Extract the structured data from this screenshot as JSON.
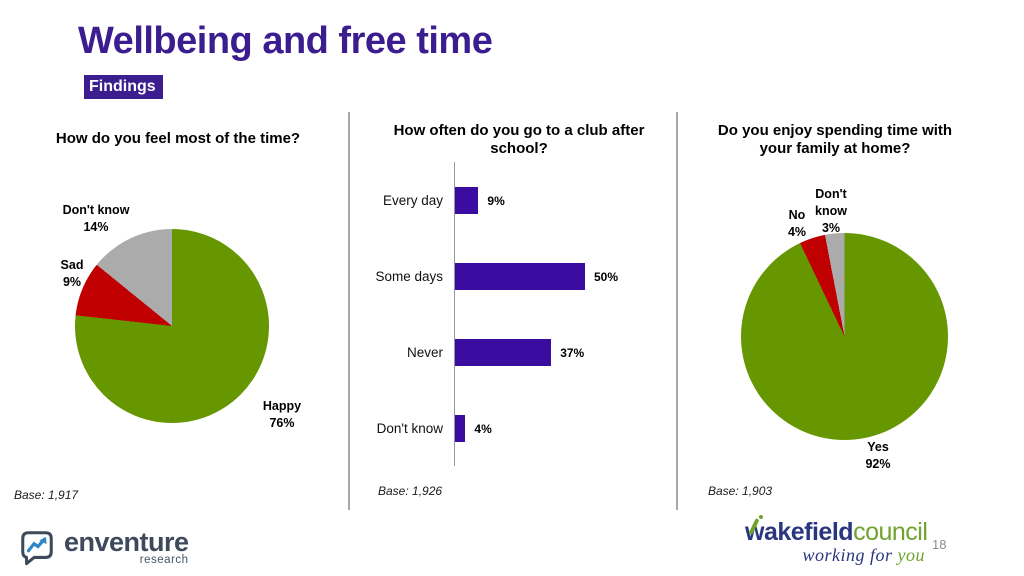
{
  "slide": {
    "title": "Wellbeing and free time",
    "subtitle": "Findings",
    "page_number": "18"
  },
  "colors": {
    "title_purple": "#3b1d90",
    "bar_purple": "#3a0ca0",
    "green": "#679700",
    "red": "#c00000",
    "gray": "#ababab"
  },
  "chart_data": [
    {
      "type": "pie",
      "title": "How do you feel most of the time?",
      "base_note": "Base: 1,917",
      "legend_position": "callouts",
      "slices": [
        {
          "label": "Happy",
          "pct_label": "76%",
          "value": 76,
          "color": "#679700"
        },
        {
          "label": "Sad",
          "pct_label": "9%",
          "value": 9,
          "color": "#c00000"
        },
        {
          "label": "Don't know",
          "pct_label": "14%",
          "value": 14,
          "color": "#ababab"
        }
      ]
    },
    {
      "type": "bar",
      "title": "How often do you go to a club after school?",
      "base_note": "Base: 1,926",
      "orientation": "horizontal",
      "categories": [
        "Every day",
        "Some days",
        "Never",
        "Don't know"
      ],
      "values": [
        9,
        50,
        37,
        4
      ],
      "value_labels": [
        "9%",
        "50%",
        "37%",
        "4%"
      ],
      "bar_color": "#3a0ca0",
      "xlim": [
        0,
        55
      ],
      "grid": false
    },
    {
      "type": "pie",
      "title": "Do you enjoy spending time with your family at home?",
      "base_note": "Base: 1,903",
      "legend_position": "callouts",
      "slices": [
        {
          "label": "Yes",
          "pct_label": "92%",
          "value": 92,
          "color": "#679700"
        },
        {
          "label": "No",
          "pct_label": "4%",
          "value": 4,
          "color": "#c00000"
        },
        {
          "label": "Don't know",
          "pct_label": "3%",
          "value": 3,
          "color": "#ababab"
        }
      ]
    }
  ],
  "footer": {
    "enventure": {
      "name": "enventure",
      "sub": "research"
    },
    "wakefield": {
      "name_bold": "wakefield",
      "name_light": "council",
      "tagline_navy": "working for",
      "tagline_green": "you"
    }
  }
}
